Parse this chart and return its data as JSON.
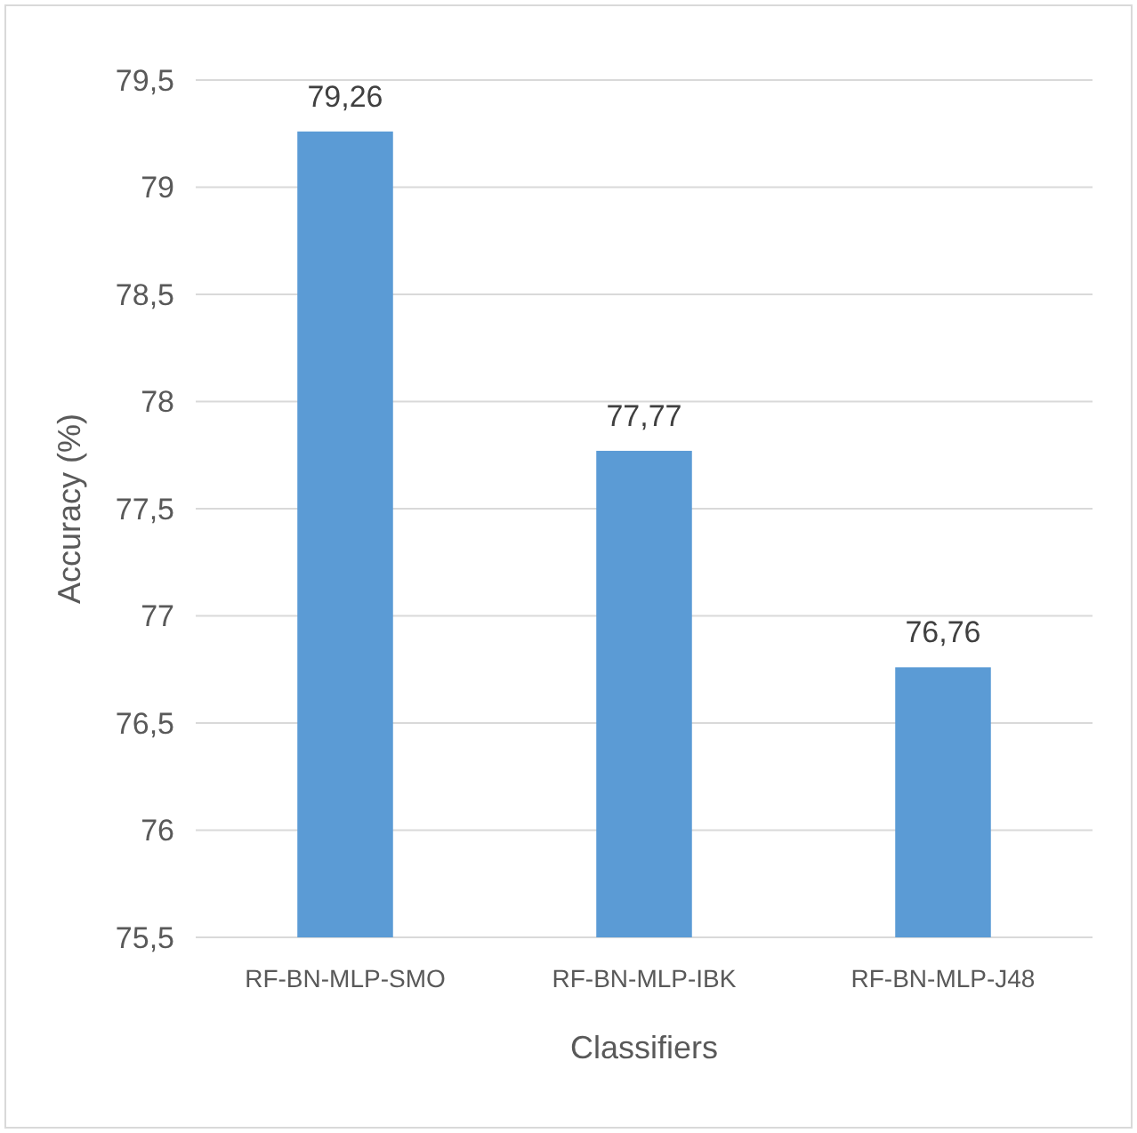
{
  "chart_data": {
    "type": "bar",
    "xlabel": "Classifiers",
    "ylabel": "Accuracy (%)",
    "categories": [
      "RF-BN-MLP-SMO",
      "RF-BN-MLP-IBK",
      "RF-BN-MLP-J48"
    ],
    "values": [
      79.26,
      77.77,
      76.76
    ],
    "value_labels": [
      "79,26",
      "77,77",
      "76,76"
    ],
    "color": "#5b9bd5",
    "ylim": [
      75.5,
      79.5
    ],
    "yticks": [
      {
        "value": 75.5,
        "label": "75,5"
      },
      {
        "value": 76,
        "label": "76"
      },
      {
        "value": 76.5,
        "label": "76,5"
      },
      {
        "value": 77,
        "label": "77"
      },
      {
        "value": 77.5,
        "label": "77,5"
      },
      {
        "value": 78,
        "label": "78"
      },
      {
        "value": 78.5,
        "label": "78,5"
      },
      {
        "value": 79,
        "label": "79"
      },
      {
        "value": 79.5,
        "label": "79,5"
      }
    ],
    "grid": "y"
  }
}
